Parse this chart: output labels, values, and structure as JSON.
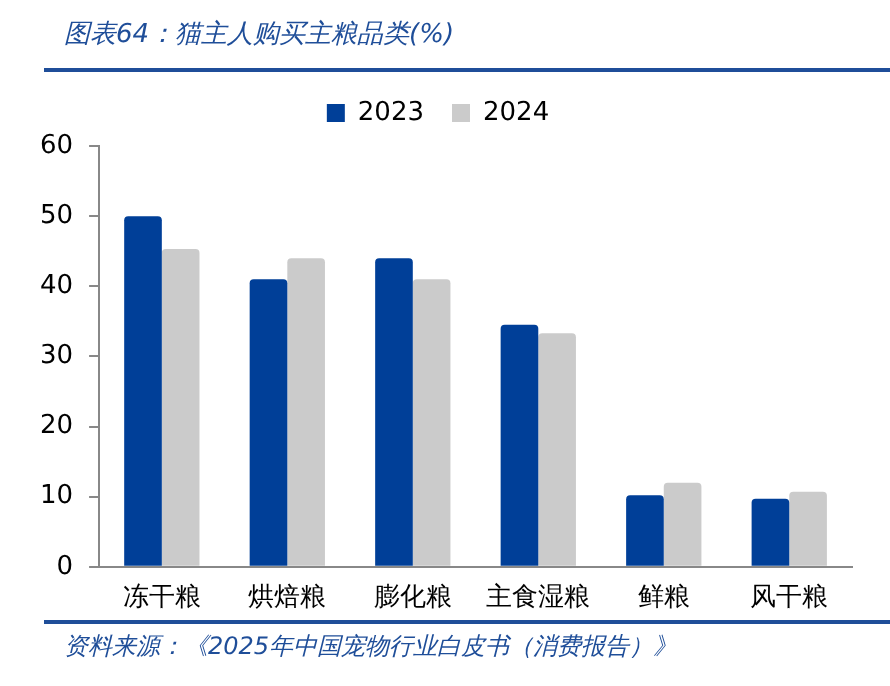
{
  "chart_data": {
    "type": "bar",
    "title": "图表64：猫主人购买主粮品类(%)",
    "categories": [
      "冻干粮",
      "烘焙粮",
      "膨化粮",
      "主食湿粮",
      "鲜粮",
      "风干粮"
    ],
    "series": [
      {
        "name": "2023",
        "color": "#003f98",
        "values": [
          50,
          41,
          44,
          34.5,
          10.2,
          9.7
        ]
      },
      {
        "name": "2024",
        "color": "#cbcbcb",
        "values": [
          45.3,
          44,
          41,
          33.3,
          12,
          10.7
        ]
      }
    ],
    "ylim": [
      0,
      60
    ],
    "yticks": [
      0,
      10,
      20,
      30,
      40,
      50,
      60
    ],
    "grid": false,
    "legend": "top",
    "annotations": [
      "资料来源：《2025年中国宠物行业白皮书（消费报告）》"
    ]
  }
}
